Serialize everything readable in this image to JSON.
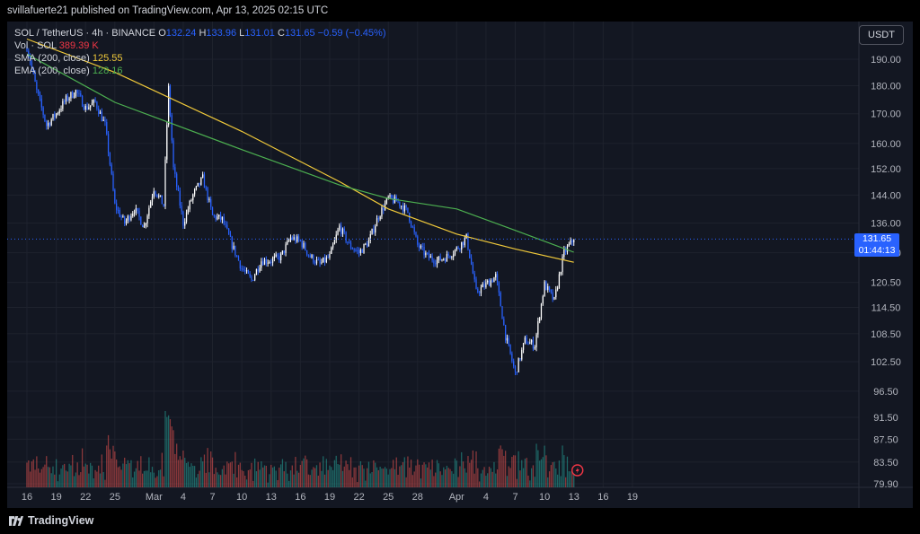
{
  "header": {
    "publisher_line": "svillafuerte21 published on TradingView.com, Apr 13, 2025 02:15 UTC"
  },
  "legend": {
    "symbol": "SOL / TetherUS · 4h · BINANCE",
    "ohlc": {
      "o_label": "O",
      "o": "132.24",
      "h_label": "H",
      "h": "133.96",
      "l_label": "L",
      "l": "131.01",
      "c_label": "C",
      "c": "131.65",
      "change": "−0.59 (−0.45%)"
    },
    "vol_label": "Vol · SOL",
    "vol": "389.39 K",
    "sma_label": "SMA (200, close)",
    "sma": "125.55",
    "ema_label": "EMA (200, close)",
    "ema": "128.16"
  },
  "currency_button": "USDT",
  "last_price": {
    "price": "131.65",
    "countdown": "01:44:13"
  },
  "footer": {
    "brand": "TradingView"
  },
  "colors": {
    "background": "#131722",
    "up": "#ffffff",
    "down": "#2962ff",
    "sma": "#f0c93a",
    "ema": "#4caf50",
    "vol_up": "#26a69a",
    "vol_down": "#ef5350"
  },
  "chart_data": {
    "type": "candlestick",
    "y_ticks": [
      "190.00",
      "180.00",
      "170.00",
      "160.00",
      "152.00",
      "144.00",
      "136.00",
      "128.00",
      "120.50",
      "114.50",
      "108.50",
      "102.50",
      "96.50",
      "91.50",
      "87.50",
      "83.50",
      "79.90"
    ],
    "x_ticks": [
      "16",
      "19",
      "22",
      "25",
      "Mar",
      "4",
      "7",
      "10",
      "13",
      "16",
      "19",
      "22",
      "25",
      "28",
      "Apr",
      "4",
      "7",
      "10",
      "13",
      "16",
      "19"
    ],
    "log_scale": true,
    "grid": true,
    "close_path": [
      [
        "Feb 16",
        195
      ],
      [
        "Feb 17",
        178
      ],
      [
        "Feb 18",
        166
      ],
      [
        "Feb 19",
        170
      ],
      [
        "Feb 20",
        175
      ],
      [
        "Feb 21",
        178
      ],
      [
        "Feb 22",
        172
      ],
      [
        "Feb 23",
        174
      ],
      [
        "Feb 24",
        166
      ],
      [
        "Feb 25",
        141
      ],
      [
        "Feb 26",
        136
      ],
      [
        "Feb 27",
        140
      ],
      [
        "Feb 28",
        135
      ],
      [
        "Mar 1",
        146
      ],
      [
        "Mar 2",
        141
      ],
      [
        "Mar 2.5",
        179
      ],
      [
        "Mar 3",
        152
      ],
      [
        "Mar 4",
        136
      ],
      [
        "Mar 5",
        144
      ],
      [
        "Mar 6",
        149
      ],
      [
        "Mar 7",
        138
      ],
      [
        "Mar 8",
        137
      ],
      [
        "Mar 9",
        130
      ],
      [
        "Mar 10",
        124
      ],
      [
        "Mar 11",
        121
      ],
      [
        "Mar 12",
        126
      ],
      [
        "Mar 13",
        126
      ],
      [
        "Mar 14",
        127
      ],
      [
        "Mar 15",
        132
      ],
      [
        "Mar 16",
        131
      ],
      [
        "Mar 17",
        127
      ],
      [
        "Mar 18",
        125
      ],
      [
        "Mar 19",
        127
      ],
      [
        "Mar 20",
        135
      ],
      [
        "Mar 21",
        130
      ],
      [
        "Mar 22",
        128
      ],
      [
        "Mar 23",
        131
      ],
      [
        "Mar 24",
        138
      ],
      [
        "Mar 25",
        143
      ],
      [
        "Mar 26",
        142
      ],
      [
        "Mar 27",
        139
      ],
      [
        "Mar 28",
        130
      ],
      [
        "Mar 29",
        127
      ],
      [
        "Mar 30",
        126
      ],
      [
        "Mar 31",
        127
      ],
      [
        "Apr 1",
        129
      ],
      [
        "Apr 2",
        132
      ],
      [
        "Apr 3",
        118
      ],
      [
        "Apr 4",
        120
      ],
      [
        "Apr 5",
        122
      ],
      [
        "Apr 6",
        108
      ],
      [
        "Apr 7",
        100
      ],
      [
        "Apr 8",
        107
      ],
      [
        "Apr 9",
        106
      ],
      [
        "Apr 10",
        120
      ],
      [
        "Apr 11",
        116
      ],
      [
        "Apr 12",
        128
      ],
      [
        "Apr 13",
        131.65
      ]
    ],
    "sma_path": [
      [
        "Feb 16",
        198
      ],
      [
        "Feb 25",
        185
      ],
      [
        "Mar 10",
        164
      ],
      [
        "Mar 20",
        148
      ],
      [
        "Mar 25",
        140
      ],
      [
        "Apr 1",
        133
      ],
      [
        "Apr 7",
        129
      ],
      [
        "Apr 13",
        125.55
      ]
    ],
    "ema_path": [
      [
        "Feb 16",
        192
      ],
      [
        "Feb 25",
        174
      ],
      [
        "Mar 10",
        158
      ],
      [
        "Mar 20",
        147
      ],
      [
        "Mar 25",
        143
      ],
      [
        "Apr 1",
        140
      ],
      [
        "Apr 7",
        134
      ],
      [
        "Apr 13",
        128.16
      ]
    ]
  }
}
